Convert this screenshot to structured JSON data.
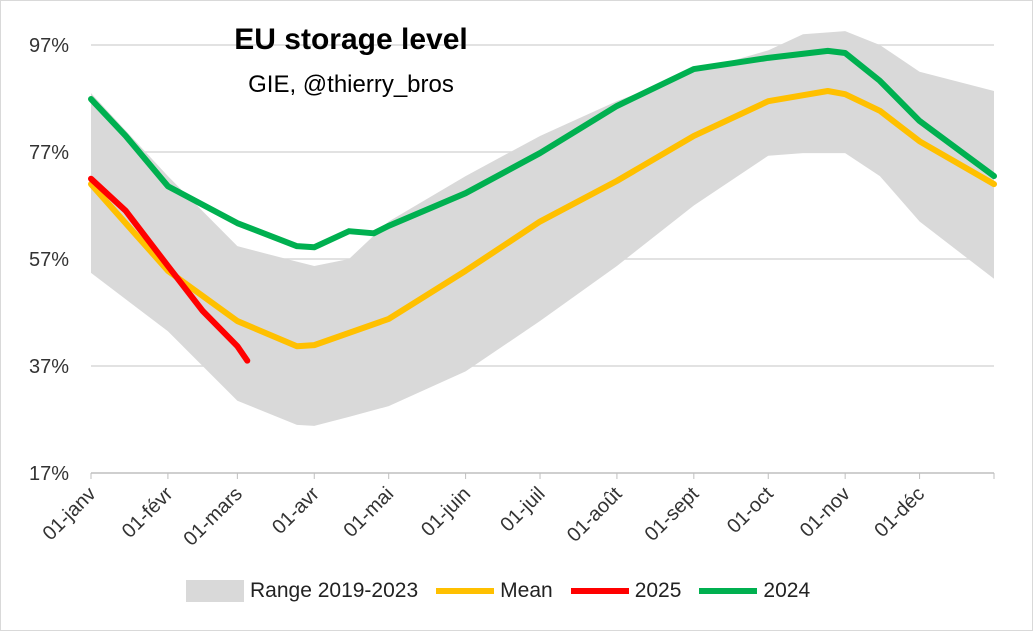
{
  "chart_data": {
    "type": "line",
    "title": "EU storage level",
    "subtitle": "GIE, @thierry_bros",
    "xlabel": "",
    "ylabel": "",
    "ylim": [
      17,
      97
    ],
    "yticks": [
      "97%",
      "77%",
      "57%",
      "37%",
      "17%"
    ],
    "ytick_values": [
      97,
      77,
      57,
      37,
      17
    ],
    "xticks": [
      "01-janv",
      "01-févr",
      "01-mars",
      "01-avr",
      "01-mai",
      "01-juin",
      "01-juil",
      "01-août",
      "01-sept",
      "01-oct",
      "01-nov",
      "01-déc"
    ],
    "xtick_dates": [
      "01-01",
      "02-01",
      "03-01",
      "04-01",
      "05-01",
      "06-01",
      "07-01",
      "08-01",
      "09-01",
      "10-01",
      "11-01",
      "12-01"
    ],
    "grid": "horizontal",
    "legend": "bottom",
    "range": {
      "name": "Range 2019-2023",
      "color": "#d9d9d9",
      "x": [
        "01-01",
        "02-01",
        "03-01",
        "03-25",
        "04-01",
        "04-15",
        "05-01",
        "06-01",
        "07-01",
        "08-01",
        "09-01",
        "10-01",
        "10-15",
        "11-01",
        "11-15",
        "12-01",
        "12-31"
      ],
      "upper": [
        88,
        72.5,
        59.4,
        56.5,
        55.7,
        57,
        64,
        72.5,
        80,
        86.5,
        92,
        96,
        99,
        99.6,
        97,
        92,
        88.4
      ],
      "lower": [
        54.4,
        43.5,
        30.5,
        26,
        25.8,
        27.5,
        29.5,
        36,
        45.4,
        55.7,
        67,
        76.3,
        76.8,
        76.8,
        72.5,
        64,
        53.3
      ]
    },
    "series": [
      {
        "name": "Mean",
        "color": "#ffc000",
        "x": [
          "01-01",
          "02-01",
          "03-01",
          "03-25",
          "04-01",
          "05-01",
          "06-01",
          "07-01",
          "08-01",
          "09-01",
          "10-01",
          "10-25",
          "11-01",
          "11-15",
          "12-01",
          "12-31"
        ],
        "y": [
          71,
          54.8,
          45.4,
          40.7,
          40.9,
          45.8,
          54.8,
          64,
          71.6,
          80,
          86.5,
          88.4,
          87.8,
          84.7,
          79,
          71
        ]
      },
      {
        "name": "2025",
        "color": "#ff0000",
        "x": [
          "01-01",
          "01-15",
          "02-01",
          "02-15",
          "03-01",
          "03-05"
        ],
        "y": [
          72,
          66,
          55.7,
          47.3,
          40.7,
          38
        ]
      },
      {
        "name": "2024",
        "color": "#00b050",
        "x": [
          "01-01",
          "01-15",
          "02-01",
          "03-01",
          "03-25",
          "04-01",
          "04-15",
          "04-25",
          "05-01",
          "06-01",
          "07-01",
          "08-01",
          "09-01",
          "10-01",
          "10-25",
          "11-01",
          "11-15",
          "12-01",
          "12-31"
        ],
        "y": [
          86.9,
          80,
          70.6,
          63.7,
          59.4,
          59.2,
          62.2,
          61.8,
          63.2,
          69.3,
          76.8,
          85.6,
          92.5,
          94.6,
          95.9,
          95.5,
          90.3,
          82.8,
          72.5
        ]
      }
    ]
  }
}
